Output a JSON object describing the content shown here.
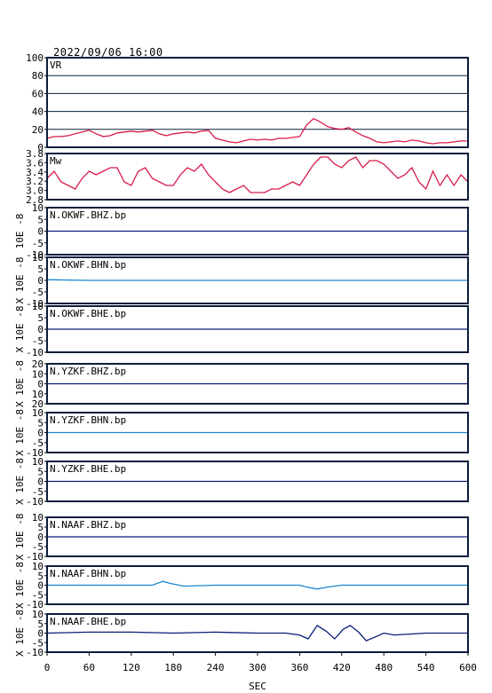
{
  "header": {
    "title": "2022/09/06 16:00"
  },
  "chart_data": {
    "type": "line",
    "xlabel": "SEC",
    "xlim": [
      0,
      600
    ],
    "xticks": [
      "0",
      "60",
      "120",
      "180",
      "240",
      "300",
      "360",
      "420",
      "480",
      "540",
      "600"
    ],
    "colors": {
      "vr": "#d81b4a",
      "mw": "#d81b4a",
      "dark_trace": "#0a1e78",
      "light_trace": "#1a86d0",
      "frame": "#0a1e3a"
    },
    "panels": [
      {
        "id": "vr",
        "label": "VR",
        "ylim": [
          0,
          100
        ],
        "yticks": [
          "100",
          "80",
          "60",
          "40",
          "20",
          "0"
        ],
        "grid": true,
        "color": "#d81b4a",
        "unit_label": "",
        "x": [
          0,
          10,
          20,
          30,
          40,
          50,
          60,
          70,
          80,
          90,
          100,
          110,
          120,
          130,
          140,
          150,
          160,
          170,
          180,
          190,
          200,
          210,
          220,
          230,
          240,
          250,
          260,
          270,
          280,
          290,
          300,
          310,
          320,
          330,
          340,
          350,
          360,
          370,
          380,
          390,
          400,
          410,
          420,
          430,
          440,
          450,
          460,
          470,
          480,
          490,
          500,
          510,
          520,
          530,
          540,
          550,
          560,
          570,
          580,
          590,
          600
        ],
        "values": [
          10,
          12,
          12,
          13,
          15,
          17,
          19,
          15,
          12,
          13,
          16,
          17,
          18,
          17,
          18,
          19,
          15,
          13,
          15,
          16,
          17,
          16,
          18,
          19,
          10,
          8,
          6,
          5,
          7,
          9,
          8,
          9,
          8,
          10,
          10,
          11,
          12,
          25,
          32,
          28,
          23,
          21,
          20,
          22,
          17,
          13,
          10,
          6,
          5,
          6,
          7,
          6,
          8,
          7,
          5,
          4,
          5,
          5,
          6,
          7,
          7
        ]
      },
      {
        "id": "mw",
        "label": "Mw",
        "ylim": [
          2.7,
          4.0
        ],
        "yticks": [
          "3.8",
          "3.6",
          "3.4",
          "3.2",
          "3.0",
          "2.8"
        ],
        "grid": false,
        "color": "#d81b4a",
        "unit_label": "",
        "x": [
          0,
          10,
          20,
          30,
          40,
          50,
          60,
          70,
          80,
          90,
          100,
          110,
          120,
          130,
          140,
          150,
          160,
          170,
          180,
          190,
          200,
          210,
          220,
          230,
          240,
          250,
          260,
          270,
          280,
          290,
          300,
          310,
          320,
          330,
          340,
          350,
          360,
          370,
          380,
          390,
          400,
          410,
          420,
          430,
          440,
          450,
          460,
          470,
          480,
          490,
          500,
          510,
          520,
          530,
          540,
          550,
          560,
          570,
          580,
          590,
          600
        ],
        "values": [
          3.3,
          3.5,
          3.2,
          3.1,
          3.0,
          3.3,
          3.5,
          3.4,
          3.5,
          3.6,
          3.6,
          3.2,
          3.1,
          3.5,
          3.6,
          3.3,
          3.2,
          3.1,
          3.1,
          3.4,
          3.6,
          3.5,
          3.7,
          3.4,
          3.2,
          3.0,
          2.9,
          3.0,
          3.1,
          2.9,
          2.9,
          2.9,
          3.0,
          3.0,
          3.1,
          3.2,
          3.1,
          3.4,
          3.7,
          3.9,
          3.9,
          3.7,
          3.6,
          3.8,
          3.9,
          3.6,
          3.8,
          3.8,
          3.7,
          3.5,
          3.3,
          3.4,
          3.6,
          3.2,
          3.0,
          3.5,
          3.1,
          3.4,
          3.1,
          3.4,
          3.2
        ]
      },
      {
        "id": "okwf-bhz",
        "label": "N.OKWF.BHZ.bp",
        "ylim": [
          -10,
          10
        ],
        "yticks": [
          "10",
          "5",
          "0",
          "-5",
          "-10"
        ],
        "grid": false,
        "color": "#0a1e78",
        "unit_label": "10E -8",
        "x": [
          0,
          60,
          120,
          180,
          240,
          300,
          360,
          420,
          480,
          540,
          600
        ],
        "values": [
          0,
          0,
          0,
          0,
          0,
          0,
          0,
          0,
          0,
          0,
          0
        ]
      },
      {
        "id": "okwf-bhn",
        "label": "N.OKWF.BHN.bp",
        "ylim": [
          -10,
          10
        ],
        "yticks": [
          "10",
          "5",
          "0",
          "-5",
          "-10"
        ],
        "grid": false,
        "color": "#1a86d0",
        "unit_label": "X 10E -8",
        "x": [
          0,
          60,
          120,
          180,
          240,
          300,
          360,
          420,
          480,
          540,
          600
        ],
        "values": [
          0.3,
          0,
          0,
          0,
          0,
          0,
          0,
          0,
          0,
          0,
          0
        ]
      },
      {
        "id": "okwf-bhe",
        "label": "N.OKWF.BHE.bp",
        "ylim": [
          -10,
          10
        ],
        "yticks": [
          "10",
          "5",
          "0",
          "-5",
          "-10"
        ],
        "grid": false,
        "color": "#0a1e78",
        "unit_label": "X 10E -8",
        "x": [
          0,
          60,
          120,
          180,
          240,
          300,
          360,
          420,
          480,
          540,
          600
        ],
        "values": [
          0,
          0,
          0,
          0,
          0,
          0,
          0,
          0,
          0,
          0,
          0
        ]
      },
      {
        "id": "yzkf-bhz",
        "label": "N.YZKF.BHZ.bp",
        "ylim": [
          -20,
          20
        ],
        "yticks": [
          "20",
          "10",
          "0",
          "10",
          "20"
        ],
        "grid": false,
        "color": "#0a1e78",
        "unit_label": "X 10E -8",
        "x": [
          0,
          60,
          120,
          180,
          240,
          300,
          360,
          420,
          480,
          540,
          600
        ],
        "values": [
          0,
          0,
          0,
          0,
          0,
          0,
          0,
          0,
          0,
          0,
          0
        ]
      },
      {
        "id": "yzkf-bhn",
        "label": "N.YZKF.BHN.bp",
        "ylim": [
          -10,
          10
        ],
        "yticks": [
          "10",
          "5",
          "0",
          "-5",
          "-10"
        ],
        "grid": false,
        "color": "#1a86d0",
        "unit_label": "X 10E -8",
        "x": [
          0,
          60,
          120,
          180,
          240,
          300,
          360,
          420,
          480,
          540,
          600
        ],
        "values": [
          0,
          0,
          0,
          0,
          0,
          0,
          0,
          0,
          0,
          0,
          0
        ]
      },
      {
        "id": "yzkf-bhe",
        "label": "N.YZKF.BHE.bp",
        "ylim": [
          -10,
          10
        ],
        "yticks": [
          "10",
          "5",
          "0",
          "-5",
          "-10"
        ],
        "grid": false,
        "color": "#0a1e78",
        "unit_label": "X 10E -8",
        "x": [
          0,
          60,
          120,
          180,
          240,
          300,
          360,
          420,
          480,
          540,
          600
        ],
        "values": [
          0,
          0,
          0,
          0,
          0,
          0,
          0,
          0,
          0,
          0,
          0
        ]
      },
      {
        "id": "naaf-bhz",
        "label": "N.NAAF.BHZ.bp",
        "ylim": [
          -10,
          10
        ],
        "yticks": [
          "10",
          "5",
          "0",
          "-5",
          "-10"
        ],
        "grid": false,
        "color": "#0a1e78",
        "unit_label": "X 10E -8",
        "x": [
          0,
          60,
          120,
          180,
          240,
          300,
          360,
          420,
          480,
          540,
          600
        ],
        "values": [
          0,
          0,
          0,
          0,
          0,
          0,
          0,
          0,
          0,
          0,
          0
        ]
      },
      {
        "id": "naaf-bhn",
        "label": "N.NAAF.BHN.bp",
        "ylim": [
          -10,
          10
        ],
        "yticks": [
          "10",
          "5",
          "0",
          "-5",
          "-10"
        ],
        "grid": false,
        "color": "#1a86d0",
        "unit_label": "X 10E -8",
        "x": [
          0,
          60,
          120,
          150,
          165,
          175,
          195,
          240,
          300,
          360,
          370,
          385,
          400,
          420,
          480,
          540,
          600
        ],
        "values": [
          0,
          0,
          0,
          0,
          2,
          1,
          -0.5,
          0,
          0,
          0,
          -1,
          -2,
          -1,
          0,
          0,
          0,
          0
        ]
      },
      {
        "id": "naaf-bhe",
        "label": "N.NAAF.BHE.bp",
        "ylim": [
          -10,
          10
        ],
        "yticks": [
          "10",
          "5",
          "0",
          "-5",
          "-10"
        ],
        "grid": false,
        "color": "#0a1e78",
        "unit_label": "X 10E -8",
        "x": [
          0,
          60,
          120,
          180,
          240,
          300,
          340,
          360,
          372,
          385,
          398,
          410,
          422,
          432,
          444,
          455,
          468,
          480,
          495,
          540,
          600
        ],
        "values": [
          0,
          0.5,
          0.5,
          0,
          0.5,
          0,
          0,
          -1,
          -3,
          4,
          1,
          -3,
          2,
          4,
          0.5,
          -4,
          -2,
          0,
          -1,
          0,
          0
        ]
      }
    ]
  }
}
